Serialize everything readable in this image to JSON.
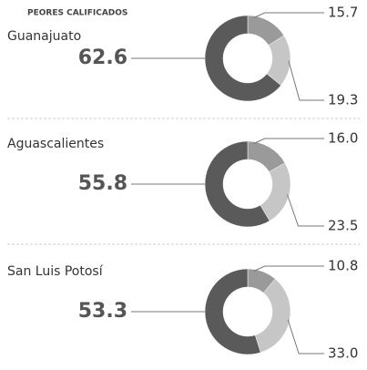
{
  "header": "PEORES CALIFICADOS",
  "chart_data": [
    {
      "type": "pie",
      "title": "Guanajuato",
      "values": [
        62.6,
        15.7,
        19.3
      ],
      "value_labels": [
        "62.6",
        "15.7",
        "19.3"
      ],
      "colors": [
        "#5a5a5a",
        "#9a9a9a",
        "#c6c6c6"
      ]
    },
    {
      "type": "pie",
      "title": "Aguascalientes",
      "values": [
        55.8,
        16.0,
        23.5
      ],
      "value_labels": [
        "55.8",
        "16.0",
        "23.5"
      ],
      "colors": [
        "#5a5a5a",
        "#9a9a9a",
        "#c6c6c6"
      ]
    },
    {
      "type": "pie",
      "title": "San Luis Potosí",
      "values": [
        53.3,
        10.8,
        33.0
      ],
      "value_labels": [
        "53.3",
        "10.8",
        "33.0"
      ],
      "colors": [
        "#5a5a5a",
        "#9a9a9a",
        "#c6c6c6"
      ]
    }
  ]
}
